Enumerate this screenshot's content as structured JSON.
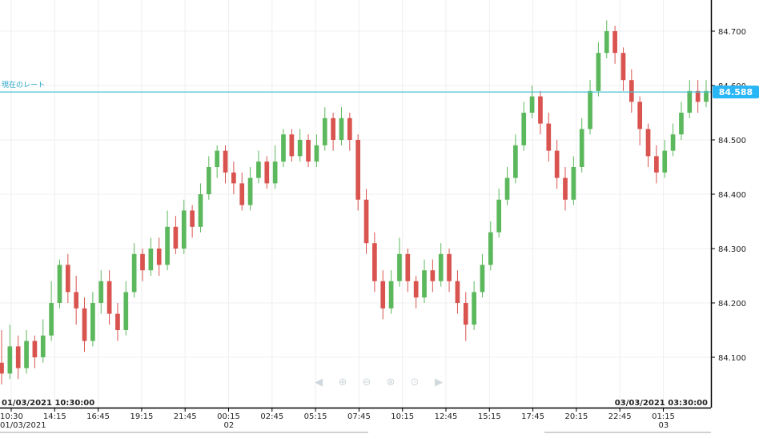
{
  "chart_data": {
    "type": "candlestick",
    "yticks": [
      "84.700",
      "84.600",
      "84.500",
      "84.400",
      "84.300",
      "84.200",
      "84.100"
    ],
    "ylim": [
      84.02,
      84.76
    ],
    "xticks": [
      "10:30",
      "14:15",
      "16:45",
      "19:15",
      "21:45",
      "00:15",
      "02:45",
      "05:15",
      "07:45",
      "10:15",
      "12:45",
      "15:15",
      "17:45",
      "20:15",
      "22:45",
      "01:15"
    ],
    "xtick_sub": {
      "10:30": "01/03/2021",
      "00:15": "02",
      "01:15": "03"
    },
    "range_start": "01/03/2021 10:30:00",
    "range_end": "03/03/2021 03:30:00",
    "current_rate": {
      "label": "現在のレート",
      "value": "84.588",
      "level": 84.588
    },
    "grid": true,
    "colors": {
      "up": "#5cb85c",
      "down": "#d9534f",
      "rate": "#4ec3d6",
      "badge": "#29b6f6",
      "axis": "#000000",
      "grid": "#efefef"
    },
    "candles": [
      [
        84.09,
        84.07,
        84.15,
        84.05
      ],
      [
        84.07,
        84.12,
        84.16,
        84.06
      ],
      [
        84.12,
        84.08,
        84.14,
        84.06
      ],
      [
        84.08,
        84.13,
        84.15,
        84.07
      ],
      [
        84.13,
        84.1,
        84.14,
        84.08
      ],
      [
        84.1,
        84.14,
        84.17,
        84.09
      ],
      [
        84.14,
        84.2,
        84.24,
        84.13
      ],
      [
        84.2,
        84.27,
        84.28,
        84.19
      ],
      [
        84.27,
        84.22,
        84.29,
        84.2
      ],
      [
        84.22,
        84.19,
        84.25,
        84.16
      ],
      [
        84.19,
        84.13,
        84.21,
        84.11
      ],
      [
        84.13,
        84.2,
        84.22,
        84.12
      ],
      [
        84.2,
        84.24,
        84.26,
        84.18
      ],
      [
        84.24,
        84.18,
        84.26,
        84.16
      ],
      [
        84.18,
        84.15,
        84.2,
        84.13
      ],
      [
        84.15,
        84.22,
        84.24,
        84.14
      ],
      [
        84.22,
        84.29,
        84.31,
        84.21
      ],
      [
        84.29,
        84.26,
        84.3,
        84.24
      ],
      [
        84.26,
        84.3,
        84.32,
        84.25
      ],
      [
        84.3,
        84.27,
        84.32,
        84.25
      ],
      [
        84.27,
        84.34,
        84.37,
        84.26
      ],
      [
        84.34,
        84.3,
        84.36,
        84.29
      ],
      [
        84.3,
        84.37,
        84.39,
        84.29
      ],
      [
        84.37,
        84.34,
        84.38,
        84.32
      ],
      [
        84.34,
        84.4,
        84.42,
        84.33
      ],
      [
        84.4,
        84.45,
        84.47,
        84.39
      ],
      [
        84.45,
        84.48,
        84.49,
        84.43
      ],
      [
        84.48,
        84.44,
        84.49,
        84.42
      ],
      [
        84.44,
        84.42,
        84.46,
        84.4
      ],
      [
        84.42,
        84.38,
        84.44,
        84.37
      ],
      [
        84.38,
        84.43,
        84.45,
        84.37
      ],
      [
        84.43,
        84.46,
        84.48,
        84.42
      ],
      [
        84.46,
        84.42,
        84.47,
        84.41
      ],
      [
        84.42,
        84.46,
        84.49,
        84.41
      ],
      [
        84.46,
        84.51,
        84.52,
        84.45
      ],
      [
        84.51,
        84.47,
        84.52,
        84.46
      ],
      [
        84.47,
        84.5,
        84.52,
        84.46
      ],
      [
        84.5,
        84.46,
        84.51,
        84.45
      ],
      [
        84.46,
        84.49,
        84.51,
        84.45
      ],
      [
        84.49,
        84.54,
        84.56,
        84.48
      ],
      [
        84.54,
        84.5,
        84.55,
        84.48
      ],
      [
        84.5,
        84.54,
        84.56,
        84.49
      ],
      [
        84.54,
        84.5,
        84.55,
        84.48
      ],
      [
        84.5,
        84.39,
        84.51,
        84.37
      ],
      [
        84.39,
        84.31,
        84.41,
        84.29
      ],
      [
        84.31,
        84.24,
        84.33,
        84.22
      ],
      [
        84.24,
        84.19,
        84.26,
        84.17
      ],
      [
        84.19,
        84.24,
        84.26,
        84.18
      ],
      [
        84.24,
        84.29,
        84.32,
        84.23
      ],
      [
        84.29,
        84.24,
        84.3,
        84.22
      ],
      [
        84.24,
        84.21,
        84.25,
        84.19
      ],
      [
        84.21,
        84.26,
        84.28,
        84.2
      ],
      [
        84.26,
        84.24,
        84.28,
        84.22
      ],
      [
        84.24,
        84.29,
        84.31,
        84.23
      ],
      [
        84.29,
        84.24,
        84.3,
        84.22
      ],
      [
        84.24,
        84.2,
        84.26,
        84.18
      ],
      [
        84.2,
        84.16,
        84.22,
        84.13
      ],
      [
        84.16,
        84.22,
        84.24,
        84.15
      ],
      [
        84.22,
        84.27,
        84.29,
        84.21
      ],
      [
        84.27,
        84.33,
        84.35,
        84.26
      ],
      [
        84.33,
        84.39,
        84.41,
        84.32
      ],
      [
        84.39,
        84.43,
        84.45,
        84.38
      ],
      [
        84.43,
        84.49,
        84.51,
        84.42
      ],
      [
        84.49,
        84.55,
        84.57,
        84.48
      ],
      [
        84.55,
        84.58,
        84.6,
        84.54
      ],
      [
        84.58,
        84.53,
        84.59,
        84.51
      ],
      [
        84.53,
        84.48,
        84.55,
        84.46
      ],
      [
        84.48,
        84.43,
        84.5,
        84.41
      ],
      [
        84.43,
        84.39,
        84.45,
        84.37
      ],
      [
        84.39,
        84.45,
        84.47,
        84.38
      ],
      [
        84.45,
        84.52,
        84.54,
        84.44
      ],
      [
        84.52,
        84.59,
        84.61,
        84.51
      ],
      [
        84.59,
        84.66,
        84.68,
        84.58
      ],
      [
        84.66,
        84.7,
        84.72,
        84.65
      ],
      [
        84.7,
        84.66,
        84.71,
        84.64
      ],
      [
        84.66,
        84.61,
        84.67,
        84.59
      ],
      [
        84.61,
        84.57,
        84.63,
        84.55
      ],
      [
        84.57,
        84.52,
        84.58,
        84.49
      ],
      [
        84.52,
        84.47,
        84.53,
        84.45
      ],
      [
        84.47,
        84.44,
        84.49,
        84.42
      ],
      [
        84.44,
        84.48,
        84.5,
        84.43
      ],
      [
        84.48,
        84.51,
        84.53,
        84.47
      ],
      [
        84.51,
        84.55,
        84.57,
        84.5
      ],
      [
        84.55,
        84.59,
        84.61,
        84.54
      ],
      [
        84.59,
        84.57,
        84.61,
        84.55
      ],
      [
        84.57,
        84.59,
        84.61,
        84.56
      ]
    ]
  },
  "nav_controls": [
    {
      "name": "scroll-left-icon",
      "glyph": "◀"
    },
    {
      "name": "zoom-in-icon",
      "glyph": "⊕"
    },
    {
      "name": "zoom-out-icon",
      "glyph": "⊖"
    },
    {
      "name": "zoom-reset-icon",
      "glyph": "⊗"
    },
    {
      "name": "zoom-fit-icon",
      "glyph": "⊙"
    },
    {
      "name": "scroll-right-icon",
      "glyph": "▶"
    }
  ]
}
